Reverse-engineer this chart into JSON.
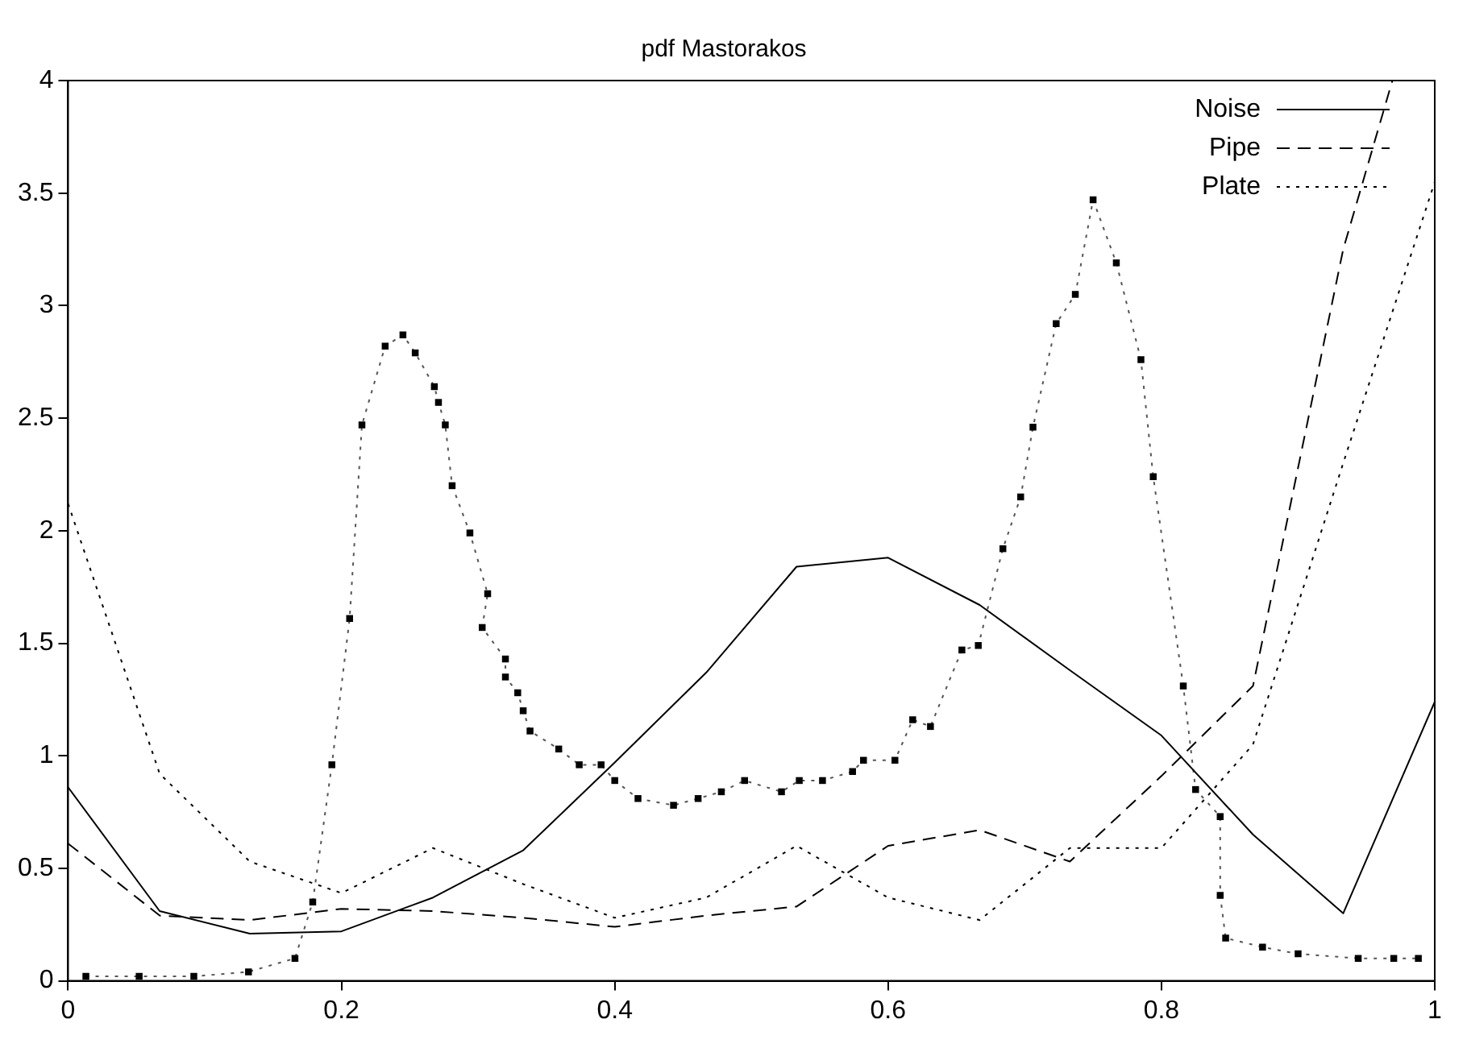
{
  "chart_data": {
    "type": "line",
    "title": "pdf Mastorakos",
    "xlim": [
      0,
      1
    ],
    "ylim": [
      0,
      4
    ],
    "xticks": [
      0,
      0.2,
      0.4,
      0.6,
      0.8,
      1
    ],
    "yticks": [
      0,
      0.5,
      1,
      1.5,
      2,
      2.5,
      3,
      3.5,
      4
    ],
    "grid": false,
    "legend": "top right",
    "marker": "none",
    "series": [
      {
        "name": "Noise",
        "color": "#000000",
        "line_style": "solid",
        "x": [
          0,
          0.067,
          0.133,
          0.2,
          0.267,
          0.333,
          0.4,
          0.467,
          0.533,
          0.6,
          0.667,
          0.733,
          0.8,
          0.867,
          0.933,
          1
        ],
        "values": [
          0.86,
          0.31,
          0.21,
          0.22,
          0.37,
          0.58,
          0.97,
          1.37,
          1.84,
          1.88,
          1.67,
          1.38,
          1.09,
          0.65,
          0.3,
          1.24
        ]
      },
      {
        "name": "Pipe",
        "color": "#000000",
        "line_style": "dashed",
        "x": [
          0,
          0.067,
          0.133,
          0.2,
          0.267,
          0.333,
          0.4,
          0.467,
          0.533,
          0.6,
          0.667,
          0.733,
          0.8,
          0.867,
          0.933,
          0.969
        ],
        "values": [
          0.61,
          0.29,
          0.27,
          0.32,
          0.31,
          0.28,
          0.24,
          0.29,
          0.33,
          0.6,
          0.67,
          0.53,
          0.91,
          1.31,
          3.25,
          4
        ]
      },
      {
        "name": "Plate",
        "color": "#000000",
        "line_style": "dotted",
        "x": [
          0,
          0.067,
          0.133,
          0.2,
          0.267,
          0.333,
          0.4,
          0.467,
          0.533,
          0.6,
          0.667,
          0.733,
          0.8,
          0.867,
          0.933,
          1
        ],
        "values": [
          2.12,
          0.92,
          0.53,
          0.39,
          0.59,
          0.43,
          0.28,
          0.37,
          0.6,
          0.37,
          0.27,
          0.59,
          0.59,
          1.05,
          2.3,
          3.55
        ]
      },
      {
        "color": "#555555",
        "line_style": "dotted",
        "marker": "square",
        "x": [
          0.013,
          0.052,
          0.092,
          0.132,
          0.166,
          0.179,
          0.193,
          0.206,
          0.215,
          0.232,
          0.245,
          0.254,
          0.268,
          0.271,
          0.276,
          0.281,
          0.294,
          0.307,
          0.303,
          0.32,
          0.32,
          0.329,
          0.333,
          0.338,
          0.359,
          0.374,
          0.39,
          0.4,
          0.417,
          0.443,
          0.461,
          0.478,
          0.495,
          0.522,
          0.535,
          0.552,
          0.574,
          0.582,
          0.605,
          0.618,
          0.631,
          0.654,
          0.666,
          0.684,
          0.697,
          0.706,
          0.723,
          0.737,
          0.75,
          0.767,
          0.785,
          0.794,
          0.816,
          0.825,
          0.843,
          0.843,
          0.847,
          0.874,
          0.9,
          0.944,
          0.97,
          0.988
        ],
        "values": [
          0.02,
          0.02,
          0.02,
          0.04,
          0.1,
          0.35,
          0.96,
          1.61,
          2.47,
          2.82,
          2.87,
          2.79,
          2.64,
          2.57,
          2.47,
          2.2,
          1.99,
          1.72,
          1.57,
          1.43,
          1.35,
          1.28,
          1.2,
          1.11,
          1.03,
          0.96,
          0.96,
          0.89,
          0.81,
          0.78,
          0.81,
          0.84,
          0.89,
          0.84,
          0.89,
          0.89,
          0.93,
          0.98,
          0.98,
          1.16,
          1.13,
          1.47,
          1.49,
          1.92,
          2.15,
          2.46,
          2.92,
          3.05,
          3.47,
          3.19,
          2.76,
          2.24,
          1.31,
          0.85,
          0.73,
          0.38,
          0.19,
          0.15,
          0.12,
          0.1,
          0.1,
          0.1
        ]
      }
    ]
  }
}
